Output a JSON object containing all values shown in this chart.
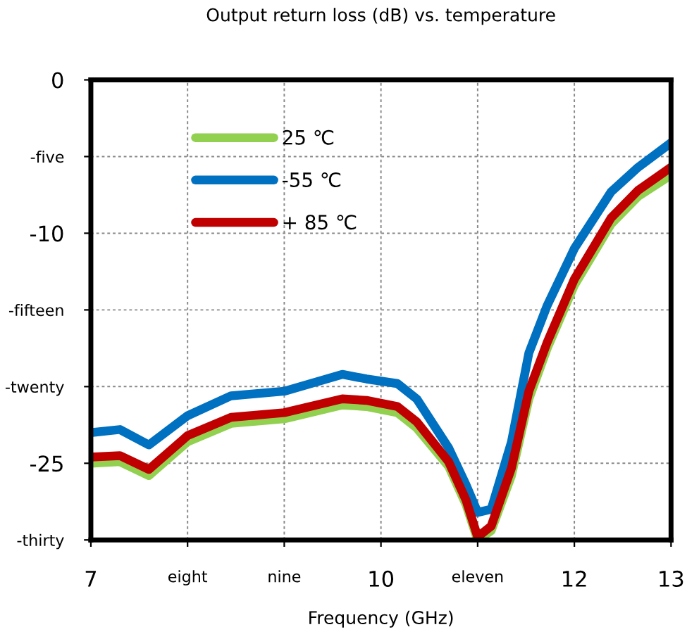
{
  "chart_data": {
    "type": "line",
    "title": "Output return loss (dB) vs. temperature",
    "xlabel": "Frequency (GHz)",
    "x": [
      7.0,
      7.3,
      7.6,
      8.0,
      8.45,
      9.0,
      9.6,
      9.85,
      10.17,
      10.37,
      10.7,
      10.88,
      11.0,
      11.14,
      11.35,
      11.53,
      11.72,
      12.0,
      12.38,
      12.66,
      13.0
    ],
    "series": [
      {
        "name": "25 ℃",
        "color": "#92d050",
        "values": [
          -25.0,
          -24.9,
          -25.8,
          -23.6,
          -22.4,
          -22.1,
          -21.2,
          -21.3,
          -21.7,
          -22.7,
          -25.2,
          -27.7,
          -30.0,
          -29.4,
          -25.8,
          -20.8,
          -17.5,
          -13.4,
          -9.4,
          -7.6,
          -6.2
        ]
      },
      {
        "name": "-55 ℃",
        "color": "#0070c0",
        "values": [
          -23.0,
          -22.8,
          -23.8,
          -21.9,
          -20.6,
          -20.3,
          -19.2,
          -19.5,
          -19.8,
          -20.8,
          -24.0,
          -26.4,
          -28.2,
          -28.0,
          -23.6,
          -17.8,
          -14.7,
          -11.0,
          -7.3,
          -5.7,
          -4.1
        ]
      },
      {
        "name": "+ 85 ℃",
        "color": "#c00000",
        "values": [
          -24.6,
          -24.5,
          -25.4,
          -23.2,
          -22.0,
          -21.7,
          -20.8,
          -20.9,
          -21.3,
          -22.3,
          -24.9,
          -27.4,
          -29.8,
          -29.1,
          -25.3,
          -20.3,
          -17.1,
          -13.0,
          -9.0,
          -7.2,
          -5.7
        ]
      }
    ],
    "xlim": [
      7,
      13
    ],
    "xticks": [
      7,
      {
        "value": 8,
        "label": "eight"
      },
      {
        "value": 9,
        "label": "nine"
      },
      10,
      {
        "value": 11,
        "label": "eleven"
      },
      12,
      13
    ],
    "ylim": [
      -30,
      0
    ],
    "yticks": [
      {
        "value": -30,
        "label": "-thirty"
      },
      -25,
      {
        "value": -20,
        "label": "-twenty"
      },
      {
        "value": -15,
        "label": "-fifteen"
      },
      -10,
      {
        "value": -5,
        "label": "-five"
      },
      0
    ],
    "grid": true,
    "legend": "top left",
    "line_style": "solid",
    "marker": "none"
  }
}
